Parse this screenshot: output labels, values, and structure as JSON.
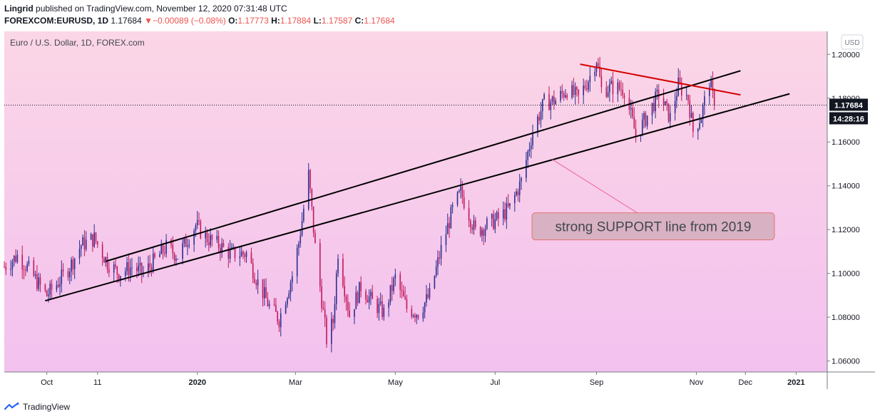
{
  "header": {
    "author": "Lingrid",
    "published_text": "published on TradingView.com, November 12, 2020 07:31:48 UTC",
    "symbol": "FOREXCOM:EURUSD, 1D",
    "last": "1.17684",
    "change_arrow": "▼",
    "change": "−0.00089 (−0.08%)",
    "o_label": "O:",
    "o_value": "1.17773",
    "h_label": "H:",
    "h_value": "1.17884",
    "l_label": "L:",
    "l_value": "1.17587",
    "c_label": "C:",
    "c_value": "1.17684"
  },
  "footer": {
    "brand": "TradingView",
    "brand_icon": "tradingview-logo-icon"
  },
  "colors": {
    "bull": "#2a2e8f",
    "bear": "#c2185b",
    "background_top": "#fbd6e6",
    "background_bottom": "#f3c1ef",
    "price_label_bg": "#131722",
    "red_line": "#d50000"
  },
  "chart_data": {
    "type": "candlestick",
    "title": "Euro / U.S. Dollar, 1D, FOREX.com",
    "currency": "USD",
    "ylim": [
      1.055,
      1.2105
    ],
    "y_ticks": [
      "1.20000",
      "1.18000",
      "1.16000",
      "1.14000",
      "1.12000",
      "1.10000",
      "1.08000",
      "1.06000"
    ],
    "y_tick_values": [
      1.2,
      1.18,
      1.16,
      1.14,
      1.12,
      1.1,
      1.08,
      1.06
    ],
    "x_ticks": [
      {
        "label": "Oct",
        "date": "2019-10-01"
      },
      {
        "label": "11",
        "date": "2019-11-01"
      },
      {
        "label": "2020",
        "date": "2020-01-01"
      },
      {
        "label": "Mar",
        "date": "2020-03-01"
      },
      {
        "label": "May",
        "date": "2020-05-01"
      },
      {
        "label": "Jul",
        "date": "2020-07-01"
      },
      {
        "label": "Sep",
        "date": "2020-09-01"
      },
      {
        "label": "Nov",
        "date": "2020-11-01"
      },
      {
        "label": "Dec",
        "date": "2020-12-01"
      },
      {
        "label": "2021",
        "date": "2021-01-01"
      }
    ],
    "x_range": [
      "2019-09-05",
      "2021-01-20"
    ],
    "last_price": "1.17684",
    "last_price_value": 1.17684,
    "countdown": "14:28:16",
    "price_path": [
      [
        "2019-09-05",
        1.103
      ],
      [
        "2019-09-13",
        1.108
      ],
      [
        "2019-09-20",
        1.102
      ],
      [
        "2019-09-27",
        1.094
      ],
      [
        "2019-10-01",
        1.09
      ],
      [
        "2019-10-08",
        1.096
      ],
      [
        "2019-10-15",
        1.103
      ],
      [
        "2019-10-22",
        1.113
      ],
      [
        "2019-10-30",
        1.116
      ],
      [
        "2019-11-07",
        1.105
      ],
      [
        "2019-11-14",
        1.1
      ],
      [
        "2019-11-22",
        1.103
      ],
      [
        "2019-11-29",
        1.1
      ],
      [
        "2019-12-06",
        1.106
      ],
      [
        "2019-12-13",
        1.112
      ],
      [
        "2019-12-20",
        1.108
      ],
      [
        "2019-12-31",
        1.122
      ],
      [
        "2020-01-07",
        1.116
      ],
      [
        "2020-01-14",
        1.113
      ],
      [
        "2020-01-21",
        1.109
      ],
      [
        "2020-01-31",
        1.109
      ],
      [
        "2020-02-07",
        1.096
      ],
      [
        "2020-02-14",
        1.085
      ],
      [
        "2020-02-20",
        1.079
      ],
      [
        "2020-02-28",
        1.099
      ],
      [
        "2020-03-03",
        1.114
      ],
      [
        "2020-03-09",
        1.145
      ],
      [
        "2020-03-13",
        1.112
      ],
      [
        "2020-03-20",
        1.07
      ],
      [
        "2020-03-24",
        1.078
      ],
      [
        "2020-03-27",
        1.11
      ],
      [
        "2020-04-03",
        1.081
      ],
      [
        "2020-04-10",
        1.094
      ],
      [
        "2020-04-17",
        1.087
      ],
      [
        "2020-04-24",
        1.082
      ],
      [
        "2020-05-01",
        1.098
      ],
      [
        "2020-05-08",
        1.084
      ],
      [
        "2020-05-15",
        1.082
      ],
      [
        "2020-05-22",
        1.09
      ],
      [
        "2020-05-29",
        1.111
      ],
      [
        "2020-06-05",
        1.129
      ],
      [
        "2020-06-10",
        1.137
      ],
      [
        "2020-06-19",
        1.119
      ],
      [
        "2020-06-26",
        1.122
      ],
      [
        "2020-07-03",
        1.125
      ],
      [
        "2020-07-10",
        1.13
      ],
      [
        "2020-07-17",
        1.142
      ],
      [
        "2020-07-24",
        1.165
      ],
      [
        "2020-07-31",
        1.178
      ],
      [
        "2020-08-07",
        1.179
      ],
      [
        "2020-08-14",
        1.184
      ],
      [
        "2020-08-21",
        1.18
      ],
      [
        "2020-08-28",
        1.19
      ],
      [
        "2020-09-01",
        1.198
      ],
      [
        "2020-09-04",
        1.184
      ],
      [
        "2020-09-11",
        1.185
      ],
      [
        "2020-09-18",
        1.184
      ],
      [
        "2020-09-25",
        1.163
      ],
      [
        "2020-10-02",
        1.172
      ],
      [
        "2020-10-09",
        1.182
      ],
      [
        "2020-10-16",
        1.171
      ],
      [
        "2020-10-21",
        1.186
      ],
      [
        "2020-10-27",
        1.18
      ],
      [
        "2020-10-30",
        1.165
      ],
      [
        "2020-11-04",
        1.172
      ],
      [
        "2020-11-09",
        1.188
      ],
      [
        "2020-11-12",
        1.1768
      ]
    ],
    "trendlines": [
      {
        "name": "channel-upper",
        "color": "#000000",
        "from": [
          "2019-11-06",
          1.1055
        ],
        "to": [
          "2020-11-28",
          1.1925
        ]
      },
      {
        "name": "support",
        "color": "#000000",
        "from": [
          "2019-09-30",
          1.0875
        ],
        "to": [
          "2020-12-28",
          1.182
        ]
      },
      {
        "name": "resistance",
        "color": "#d50000",
        "from": [
          "2020-08-22",
          1.1955
        ],
        "to": [
          "2020-11-28",
          1.1815
        ]
      },
      {
        "name": "annotation-pointer",
        "color": "#f06292",
        "from": [
          "2020-08-05",
          1.152
        ],
        "to": [
          "2020-10-10",
          1.121
        ]
      }
    ],
    "annotations": [
      {
        "text": "strong SUPPORT line from 2019",
        "at": [
          "2020-10-10",
          1.1215
        ]
      }
    ]
  }
}
